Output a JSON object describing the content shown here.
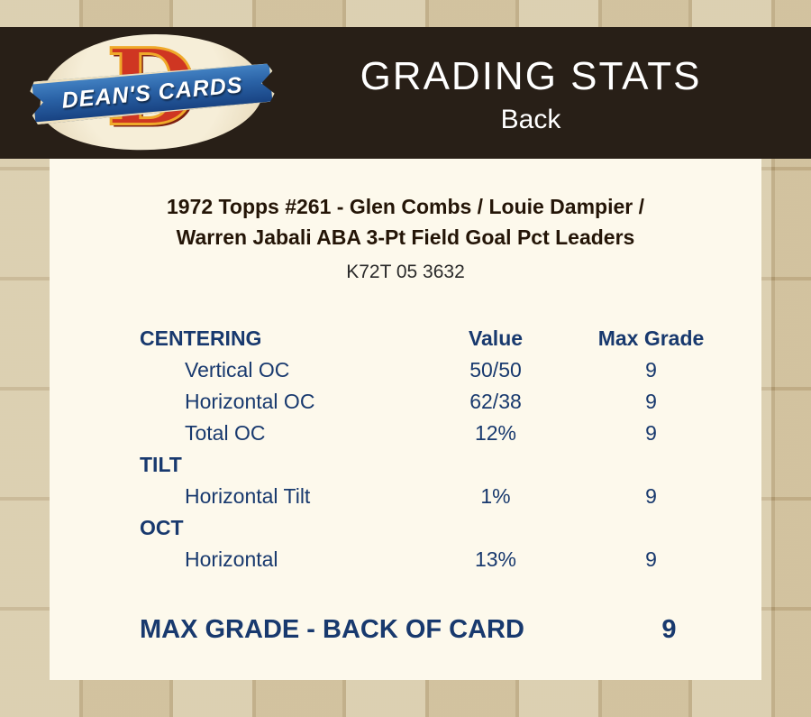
{
  "header": {
    "title": "GRADING STATS",
    "subtitle": "Back",
    "logo": {
      "letter": "D",
      "banner_text": "DEAN'S CARDS"
    }
  },
  "card": {
    "title_line1": "1972 Topps #261  -  Glen Combs / Louie Dampier /",
    "title_line2": "Warren Jabali ABA 3-Pt Field Goal Pct Leaders",
    "serial": "K72T 05 3632"
  },
  "table": {
    "columns": [
      "CENTERING",
      "Value",
      "Max Grade"
    ],
    "sections": [
      {
        "name": "CENTERING",
        "rows": [
          {
            "label": "Vertical OC",
            "value": "50/50",
            "max_grade": "9"
          },
          {
            "label": "Horizontal OC",
            "value": "62/38",
            "max_grade": "9"
          },
          {
            "label": "Total OC",
            "value": "12%",
            "max_grade": "9"
          }
        ]
      },
      {
        "name": "TILT",
        "rows": [
          {
            "label": "Horizontal Tilt",
            "value": "1%",
            "max_grade": "9"
          }
        ]
      },
      {
        "name": "OCT",
        "rows": [
          {
            "label": "Horizontal",
            "value": "13%",
            "max_grade": "9"
          }
        ]
      }
    ]
  },
  "footer": {
    "label": "MAX GRADE - BACK OF CARD",
    "value": "9"
  },
  "colors": {
    "header_background": "#281f17",
    "page_background": "#c6b48c",
    "panel_background": "#fdf9ec",
    "table_text_navy": "#18396e",
    "title_text": "#241507",
    "logo_red": "#cf3622",
    "logo_gold": "#efa92a",
    "ribbon_blue": "#2a62a6"
  }
}
